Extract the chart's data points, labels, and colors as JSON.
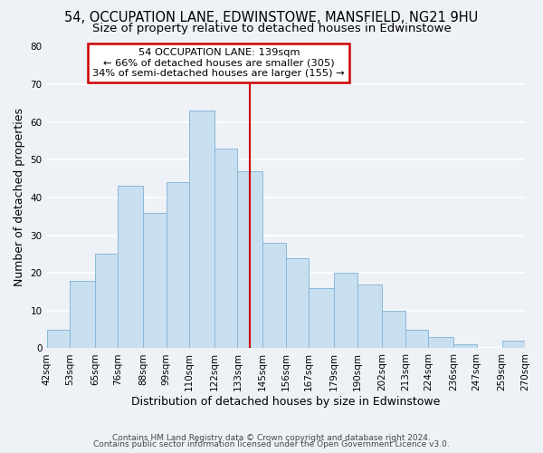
{
  "title": "54, OCCUPATION LANE, EDWINSTOWE, MANSFIELD, NG21 9HU",
  "subtitle": "Size of property relative to detached houses in Edwinstowe",
  "xlabel": "Distribution of detached houses by size in Edwinstowe",
  "ylabel": "Number of detached properties",
  "bar_edges": [
    42,
    53,
    65,
    76,
    88,
    99,
    110,
    122,
    133,
    145,
    156,
    167,
    179,
    190,
    202,
    213,
    224,
    236,
    247,
    259,
    270
  ],
  "bar_heights": [
    5,
    18,
    25,
    43,
    36,
    44,
    63,
    53,
    47,
    28,
    24,
    16,
    20,
    17,
    10,
    5,
    3,
    1,
    0,
    2
  ],
  "bar_color": "#c8dff0",
  "bar_edge_color": "#8ab8d8",
  "property_line_x": 139,
  "property_line_color": "#cc0000",
  "annotation_title": "54 OCCUPATION LANE: 139sqm",
  "annotation_line1": "← 66% of detached houses are smaller (305)",
  "annotation_line2": "34% of semi-detached houses are larger (155) →",
  "annotation_box_color": "#ffffff",
  "annotation_box_edge_color": "#cc0000",
  "ylim": [
    0,
    80
  ],
  "yticks": [
    0,
    10,
    20,
    30,
    40,
    50,
    60,
    70,
    80
  ],
  "tick_labels": [
    "42sqm",
    "53sqm",
    "65sqm",
    "76sqm",
    "88sqm",
    "99sqm",
    "110sqm",
    "122sqm",
    "133sqm",
    "145sqm",
    "156sqm",
    "167sqm",
    "179sqm",
    "190sqm",
    "202sqm",
    "213sqm",
    "224sqm",
    "236sqm",
    "247sqm",
    "259sqm",
    "270sqm"
  ],
  "footnote1": "Contains HM Land Registry data © Crown copyright and database right 2024.",
  "footnote2": "Contains public sector information licensed under the Open Government Licence v3.0.",
  "background_color": "#eef2f7",
  "plot_bg_color": "#eef2f7",
  "grid_color": "#ffffff",
  "title_fontsize": 10.5,
  "subtitle_fontsize": 9.5,
  "axis_label_fontsize": 9,
  "tick_fontsize": 7.5,
  "footnote_fontsize": 6.5
}
